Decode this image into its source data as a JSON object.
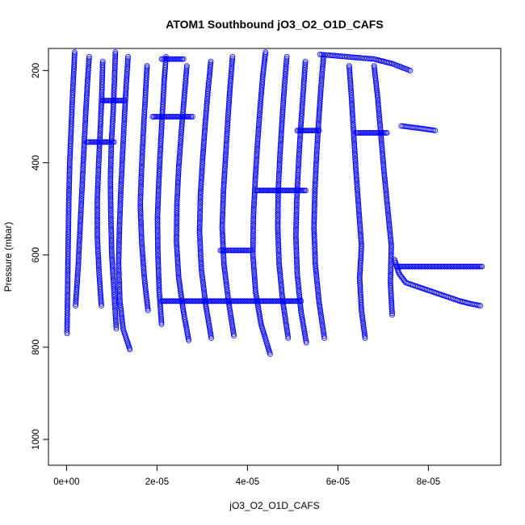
{
  "chart_data": {
    "type": "scatter",
    "title": "ATOM1 Southbound jO3_O2_O1D_CAFS",
    "xlabel": "jO3_O2_O1D_CAFS",
    "ylabel": "Pressure (mbar)",
    "xlim": [
      -4e-06,
      9.6e-05
    ],
    "ylim": [
      1056,
      152
    ],
    "y_reversed": true,
    "x_ticks": [
      0,
      2e-05,
      4e-05,
      6e-05,
      8e-05
    ],
    "x_tick_labels": [
      "0e+00",
      "2e-05",
      "4e-05",
      "6e-05",
      "8e-05"
    ],
    "y_ticks": [
      200,
      400,
      600,
      800,
      1000
    ],
    "y_tick_labels": [
      "200",
      "400",
      "600",
      "800",
      "1000"
    ],
    "grid": false,
    "marker": "open-circle",
    "color": "#0000ff",
    "series": [
      {
        "points": [
          [
            1e-07,
            770
          ],
          [
            2e-07,
            700
          ],
          [
            3e-07,
            620
          ],
          [
            4e-07,
            550
          ],
          [
            5e-07,
            480
          ],
          [
            7e-07,
            400
          ],
          [
            1e-06,
            330
          ],
          [
            1.3e-06,
            260
          ],
          [
            1.6e-06,
            200
          ],
          [
            1.8e-06,
            160
          ]
        ]
      },
      {
        "points": [
          [
            2e-06,
            710
          ],
          [
            2.6e-06,
            620
          ],
          [
            3e-06,
            540
          ],
          [
            3.4e-06,
            460
          ],
          [
            3.8e-06,
            380
          ],
          [
            4.2e-06,
            300
          ],
          [
            4.6e-06,
            230
          ],
          [
            5e-06,
            170
          ]
        ]
      },
      {
        "points": [
          [
            7.7e-06,
            710
          ],
          [
            7.2e-06,
            640
          ],
          [
            6.8e-06,
            560
          ],
          [
            6.8e-06,
            480
          ],
          [
            7.1e-06,
            400
          ],
          [
            7.5e-06,
            320
          ],
          [
            7.8e-06,
            250
          ],
          [
            8e-06,
            180
          ]
        ]
      },
      {
        "points": [
          [
            1.1e-05,
            760
          ],
          [
            1.05e-05,
            680
          ],
          [
            1e-05,
            600
          ],
          [
            9.8e-06,
            520
          ],
          [
            9.7e-06,
            440
          ],
          [
            9.9e-06,
            360
          ],
          [
            1.03e-05,
            290
          ],
          [
            1.06e-05,
            220
          ],
          [
            1.08e-05,
            160
          ]
        ]
      },
      {
        "points": [
          [
            1.4e-05,
            805
          ],
          [
            1.25e-05,
            760
          ],
          [
            1.18e-05,
            700
          ],
          [
            1.15e-05,
            620
          ],
          [
            1.17e-05,
            540
          ],
          [
            1.2e-05,
            460
          ],
          [
            1.24e-05,
            380
          ],
          [
            1.28e-05,
            300
          ],
          [
            1.32e-05,
            230
          ],
          [
            1.36e-05,
            170
          ]
        ]
      },
      {
        "points": [
          [
            1.8e-05,
            720
          ],
          [
            1.72e-05,
            650
          ],
          [
            1.66e-05,
            570
          ],
          [
            1.63e-05,
            490
          ],
          [
            1.66e-05,
            410
          ],
          [
            1.7e-05,
            330
          ],
          [
            1.74e-05,
            260
          ],
          [
            1.78e-05,
            190
          ]
        ]
      },
      {
        "points": [
          [
            2.1e-05,
            750
          ],
          [
            2.05e-05,
            680
          ],
          [
            2.02e-05,
            600
          ],
          [
            2.01e-05,
            520
          ],
          [
            2.04e-05,
            440
          ],
          [
            2.08e-05,
            360
          ],
          [
            2.12e-05,
            290
          ],
          [
            2.16e-05,
            220
          ],
          [
            2.2e-05,
            170
          ]
        ]
      },
      {
        "points": [
          [
            2.7e-05,
            785
          ],
          [
            2.58e-05,
            720
          ],
          [
            2.48e-05,
            650
          ],
          [
            2.43e-05,
            570
          ],
          [
            2.44e-05,
            490
          ],
          [
            2.48e-05,
            410
          ],
          [
            2.54e-05,
            330
          ],
          [
            2.6e-05,
            260
          ],
          [
            2.66e-05,
            190
          ]
        ]
      },
      {
        "points": [
          [
            3.2e-05,
            780
          ],
          [
            3.08e-05,
            710
          ],
          [
            2.98e-05,
            630
          ],
          [
            2.94e-05,
            550
          ],
          [
            2.96e-05,
            470
          ],
          [
            3.01e-05,
            390
          ],
          [
            3.07e-05,
            310
          ],
          [
            3.13e-05,
            240
          ],
          [
            3.19e-05,
            180
          ]
        ]
      },
      {
        "points": [
          [
            3.7e-05,
            775
          ],
          [
            3.58e-05,
            700
          ],
          [
            3.48e-05,
            620
          ],
          [
            3.44e-05,
            540
          ],
          [
            3.47e-05,
            460
          ],
          [
            3.52e-05,
            380
          ],
          [
            3.57e-05,
            300
          ],
          [
            3.62e-05,
            230
          ],
          [
            3.67e-05,
            170
          ]
        ]
      },
      {
        "points": [
          [
            4.5e-05,
            815
          ],
          [
            4.3e-05,
            750
          ],
          [
            4.18e-05,
            680
          ],
          [
            4.12e-05,
            600
          ],
          [
            4.13e-05,
            520
          ],
          [
            4.17e-05,
            440
          ],
          [
            4.22e-05,
            360
          ],
          [
            4.28e-05,
            280
          ],
          [
            4.34e-05,
            210
          ],
          [
            4.4e-05,
            160
          ]
        ]
      },
      {
        "points": [
          [
            4.9e-05,
            780
          ],
          [
            4.78e-05,
            700
          ],
          [
            4.7e-05,
            620
          ],
          [
            4.67e-05,
            540
          ],
          [
            4.68e-05,
            460
          ],
          [
            4.72e-05,
            380
          ],
          [
            4.77e-05,
            300
          ],
          [
            4.82e-05,
            230
          ],
          [
            4.87e-05,
            170
          ]
        ]
      },
      {
        "points": [
          [
            5.3e-05,
            790
          ],
          [
            5.18e-05,
            720
          ],
          [
            5.1e-05,
            640
          ],
          [
            5.07e-05,
            560
          ],
          [
            5.09e-05,
            480
          ],
          [
            5.13e-05,
            400
          ],
          [
            5.18e-05,
            320
          ],
          [
            5.23e-05,
            250
          ],
          [
            5.28e-05,
            180
          ]
        ]
      },
      {
        "points": [
          [
            5.7e-05,
            780
          ],
          [
            5.58e-05,
            700
          ],
          [
            5.5e-05,
            620
          ],
          [
            5.47e-05,
            540
          ],
          [
            5.49e-05,
            460
          ],
          [
            5.53e-05,
            380
          ],
          [
            5.58e-05,
            300
          ],
          [
            5.63e-05,
            230
          ],
          [
            5.68e-05,
            170
          ]
        ]
      },
      {
        "points": [
          [
            6.6e-05,
            780
          ],
          [
            6.52e-05,
            720
          ],
          [
            6.48e-05,
            650
          ],
          [
            6.52e-05,
            580
          ],
          [
            6.46e-05,
            500
          ],
          [
            6.4e-05,
            420
          ],
          [
            6.35e-05,
            340
          ],
          [
            6.3e-05,
            260
          ],
          [
            6.25e-05,
            190
          ]
        ]
      },
      {
        "points": [
          [
            7.2e-05,
            730
          ],
          [
            7.16e-05,
            660
          ],
          [
            7.18e-05,
            580
          ],
          [
            7.1e-05,
            500
          ],
          [
            7.02e-05,
            420
          ],
          [
            6.95e-05,
            340
          ],
          [
            6.88e-05,
            260
          ],
          [
            6.8e-05,
            190
          ]
        ]
      },
      {
        "points": [
          [
            7.25e-05,
            610
          ],
          [
            7.35e-05,
            640
          ],
          [
            7.5e-05,
            660
          ],
          [
            7.8e-05,
            670
          ],
          [
            8.1e-05,
            680
          ],
          [
            8.4e-05,
            690
          ],
          [
            8.7e-05,
            700
          ],
          [
            8.9e-05,
            705
          ],
          [
            9.15e-05,
            710
          ]
        ]
      },
      {
        "points": [
          [
            7.4e-05,
            320
          ],
          [
            7.8e-05,
            325
          ],
          [
            8.15e-05,
            330
          ]
        ]
      },
      {
        "points": [
          [
            5.6e-05,
            165
          ],
          [
            6.2e-05,
            170
          ],
          [
            6.8e-05,
            175
          ],
          [
            7.2e-05,
            185
          ],
          [
            7.6e-05,
            200
          ]
        ]
      }
    ],
    "horizontal_segments": [
      {
        "y": 700,
        "x": [
          2.1e-05,
          5.2e-05
        ]
      },
      {
        "y": 625,
        "x": [
          7.3e-05,
          9.2e-05
        ]
      },
      {
        "y": 590,
        "x": [
          3.4e-05,
          4.1e-05
        ]
      },
      {
        "y": 460,
        "x": [
          4.2e-05,
          5.3e-05
        ]
      },
      {
        "y": 335,
        "x": [
          6.4e-05,
          7.1e-05
        ]
      },
      {
        "y": 330,
        "x": [
          5.1e-05,
          5.6e-05
        ]
      },
      {
        "y": 300,
        "x": [
          1.9e-05,
          2.8e-05
        ]
      },
      {
        "y": 265,
        "x": [
          8e-06,
          1.3e-05
        ]
      },
      {
        "y": 175,
        "x": [
          2.1e-05,
          2.6e-05
        ]
      },
      {
        "y": 355,
        "x": [
          4.5e-06,
          1.05e-05
        ]
      }
    ]
  }
}
